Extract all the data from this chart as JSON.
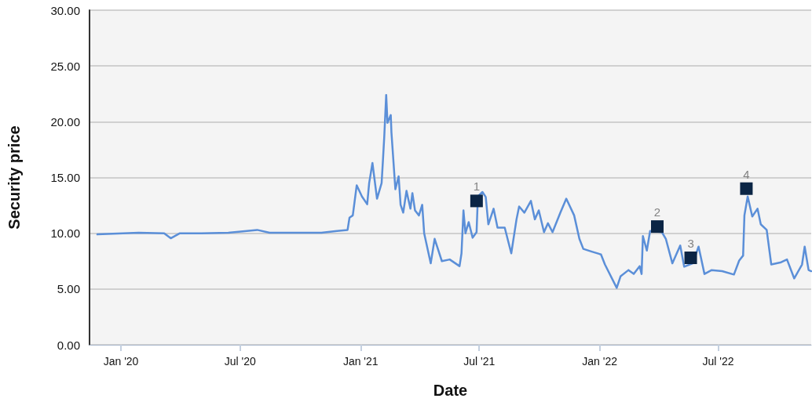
{
  "chart_data": {
    "type": "line",
    "xlabel": "Date",
    "ylabel": "Security price",
    "xlim": [
      "2019-11-14",
      "2022-11-20"
    ],
    "ylim": [
      0,
      30
    ],
    "xticks": [
      {
        "value": "2020-01-01",
        "label": "Jan '20"
      },
      {
        "value": "2020-07-01",
        "label": "Jul '20"
      },
      {
        "value": "2021-01-01",
        "label": "Jan '21"
      },
      {
        "value": "2021-07-01",
        "label": "Jul '21"
      },
      {
        "value": "2022-01-01",
        "label": "Jan '22"
      },
      {
        "value": "2022-07-01",
        "label": "Jul '22"
      }
    ],
    "yticks": [
      {
        "value": 0,
        "label": "0.00"
      },
      {
        "value": 5,
        "label": "5.00"
      },
      {
        "value": 10,
        "label": "10.00"
      },
      {
        "value": 15,
        "label": "15.00"
      },
      {
        "value": 20,
        "label": "20.00"
      },
      {
        "value": 25,
        "label": "25.00"
      },
      {
        "value": 30,
        "label": "30.00"
      }
    ],
    "grid": "y",
    "line_style": "solid",
    "series": [
      {
        "color": "#5b8fd8",
        "marker": "none",
        "x": [
          "2019-11-26",
          "2020-01-28",
          "2020-03-07",
          "2020-03-17",
          "2020-03-31",
          "2020-05-03",
          "2020-06-13",
          "2020-07-27",
          "2020-08-15",
          "2020-11-02",
          "2020-11-26",
          "2020-12-12",
          "2020-12-15",
          "2020-12-20",
          "2020-12-26",
          "2021-01-03",
          "2021-01-11",
          "2021-01-14",
          "2021-01-19",
          "2021-01-26",
          "2021-02-02",
          "2021-02-04",
          "2021-02-06",
          "2021-02-09",
          "2021-02-11",
          "2021-02-16",
          "2021-02-17",
          "2021-02-23",
          "2021-02-28",
          "2021-03-03",
          "2021-03-07",
          "2021-03-12",
          "2021-03-18",
          "2021-03-21",
          "2021-03-25",
          "2021-03-31",
          "2021-04-05",
          "2021-04-08",
          "2021-04-18",
          "2021-04-24",
          "2021-05-05",
          "2021-05-17",
          "2021-06-01",
          "2021-06-04",
          "2021-06-07",
          "2021-06-10",
          "2021-06-15",
          "2021-06-21",
          "2021-06-27",
          "2021-06-29",
          "2021-07-06",
          "2021-07-11",
          "2021-07-15",
          "2021-07-23",
          "2021-07-29",
          "2021-08-09",
          "2021-08-19",
          "2021-08-27",
          "2021-08-31",
          "2021-09-08",
          "2021-09-18",
          "2021-09-24",
          "2021-09-30",
          "2021-10-08",
          "2021-10-14",
          "2021-10-21",
          "2021-11-02",
          "2021-11-11",
          "2021-11-23",
          "2021-12-01",
          "2021-12-07",
          "2021-12-20",
          "2022-01-03",
          "2022-01-09",
          "2022-01-27",
          "2022-02-02",
          "2022-02-14",
          "2022-02-22",
          "2022-03-03",
          "2022-03-06",
          "2022-03-08",
          "2022-03-14",
          "2022-03-19",
          "2022-04-06",
          "2022-04-12",
          "2022-04-22",
          "2022-05-04",
          "2022-05-10",
          "2022-05-23",
          "2022-06-01",
          "2022-06-10",
          "2022-06-21",
          "2022-07-07",
          "2022-07-25",
          "2022-08-02",
          "2022-08-08",
          "2022-08-10",
          "2022-08-15",
          "2022-08-22",
          "2022-08-30",
          "2022-09-04",
          "2022-09-13",
          "2022-09-20",
          "2022-10-05",
          "2022-10-14",
          "2022-10-25",
          "2022-11-06",
          "2022-11-10",
          "2022-11-16",
          "2022-11-20"
        ],
        "values": [
          9.9,
          10.05,
          10.0,
          9.55,
          10.0,
          10.0,
          10.05,
          10.3,
          10.05,
          10.05,
          10.2,
          10.3,
          11.4,
          11.6,
          14.3,
          13.3,
          12.6,
          14.5,
          16.3,
          13.1,
          14.5,
          16.5,
          18.6,
          22.4,
          19.9,
          20.6,
          19.05,
          13.95,
          15.1,
          12.55,
          11.85,
          13.8,
          12.2,
          13.6,
          12.05,
          11.6,
          12.55,
          10.0,
          7.3,
          9.5,
          7.5,
          7.65,
          7.05,
          8.2,
          12.05,
          10.0,
          11.0,
          9.6,
          10.1,
          13.3,
          13.7,
          13.25,
          10.8,
          12.2,
          10.5,
          10.5,
          8.2,
          11.25,
          12.4,
          11.85,
          12.9,
          11.25,
          12.05,
          10.1,
          10.9,
          10.1,
          11.85,
          13.1,
          11.6,
          9.5,
          8.6,
          8.35,
          8.1,
          7.2,
          5.1,
          6.15,
          6.7,
          6.35,
          7.05,
          6.35,
          9.75,
          8.45,
          10.2,
          10.1,
          9.5,
          7.3,
          8.9,
          7.0,
          7.3,
          8.8,
          6.35,
          6.7,
          6.6,
          6.3,
          7.55,
          8.0,
          11.6,
          13.3,
          11.5,
          12.2,
          10.8,
          10.3,
          7.2,
          7.4,
          7.65,
          5.95,
          7.2,
          8.8,
          6.7,
          6.6
        ]
      },
      {
        "type": "scatter",
        "color": "#0b2545",
        "marker": "square",
        "x": [
          "2021-06-27",
          "2022-03-30",
          "2022-05-20",
          "2022-08-13"
        ],
        "values": [
          12.9,
          10.6,
          7.8,
          14.0
        ]
      }
    ],
    "annotations": [
      {
        "text": "1",
        "x": "2021-06-27",
        "y": 12.9
      },
      {
        "text": "2",
        "x": "2022-03-30",
        "y": 10.6
      },
      {
        "text": "3",
        "x": "2022-05-20",
        "y": 7.8
      },
      {
        "text": "4",
        "x": "2022-08-13",
        "y": 14.0
      }
    ]
  }
}
